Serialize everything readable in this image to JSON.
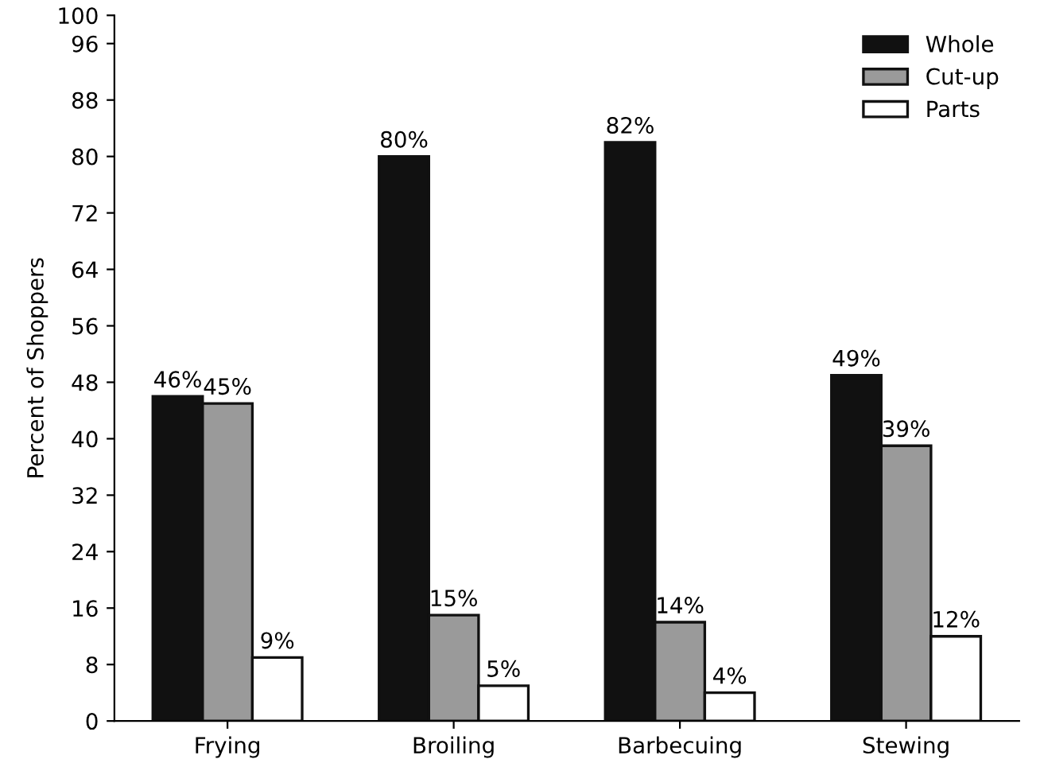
{
  "chart_data": {
    "type": "bar",
    "ylabel": "Percent of Shoppers",
    "categories": [
      "Frying",
      "Broiling",
      "Barbecuing",
      "Stewing"
    ],
    "series": [
      {
        "name": "Whole",
        "color": "#111111",
        "values": [
          46,
          80,
          82,
          49
        ],
        "value_labels": [
          "46%",
          "80%",
          "82%",
          "49%"
        ]
      },
      {
        "name": "Cut-up",
        "color": "#9a9a9a",
        "values": [
          45,
          15,
          14,
          39
        ],
        "value_labels": [
          "45%",
          "15%",
          "14%",
          "39%"
        ]
      },
      {
        "name": "Parts",
        "color": "#ffffff",
        "values": [
          9,
          5,
          4,
          12
        ],
        "value_labels": [
          "9%",
          "5%",
          "4%",
          "12%"
        ]
      }
    ],
    "ylim": [
      0,
      100
    ],
    "yticks": [
      0,
      8,
      16,
      24,
      32,
      40,
      48,
      56,
      64,
      72,
      80,
      88,
      96,
      100
    ],
    "grid": false,
    "legend": "top right"
  }
}
